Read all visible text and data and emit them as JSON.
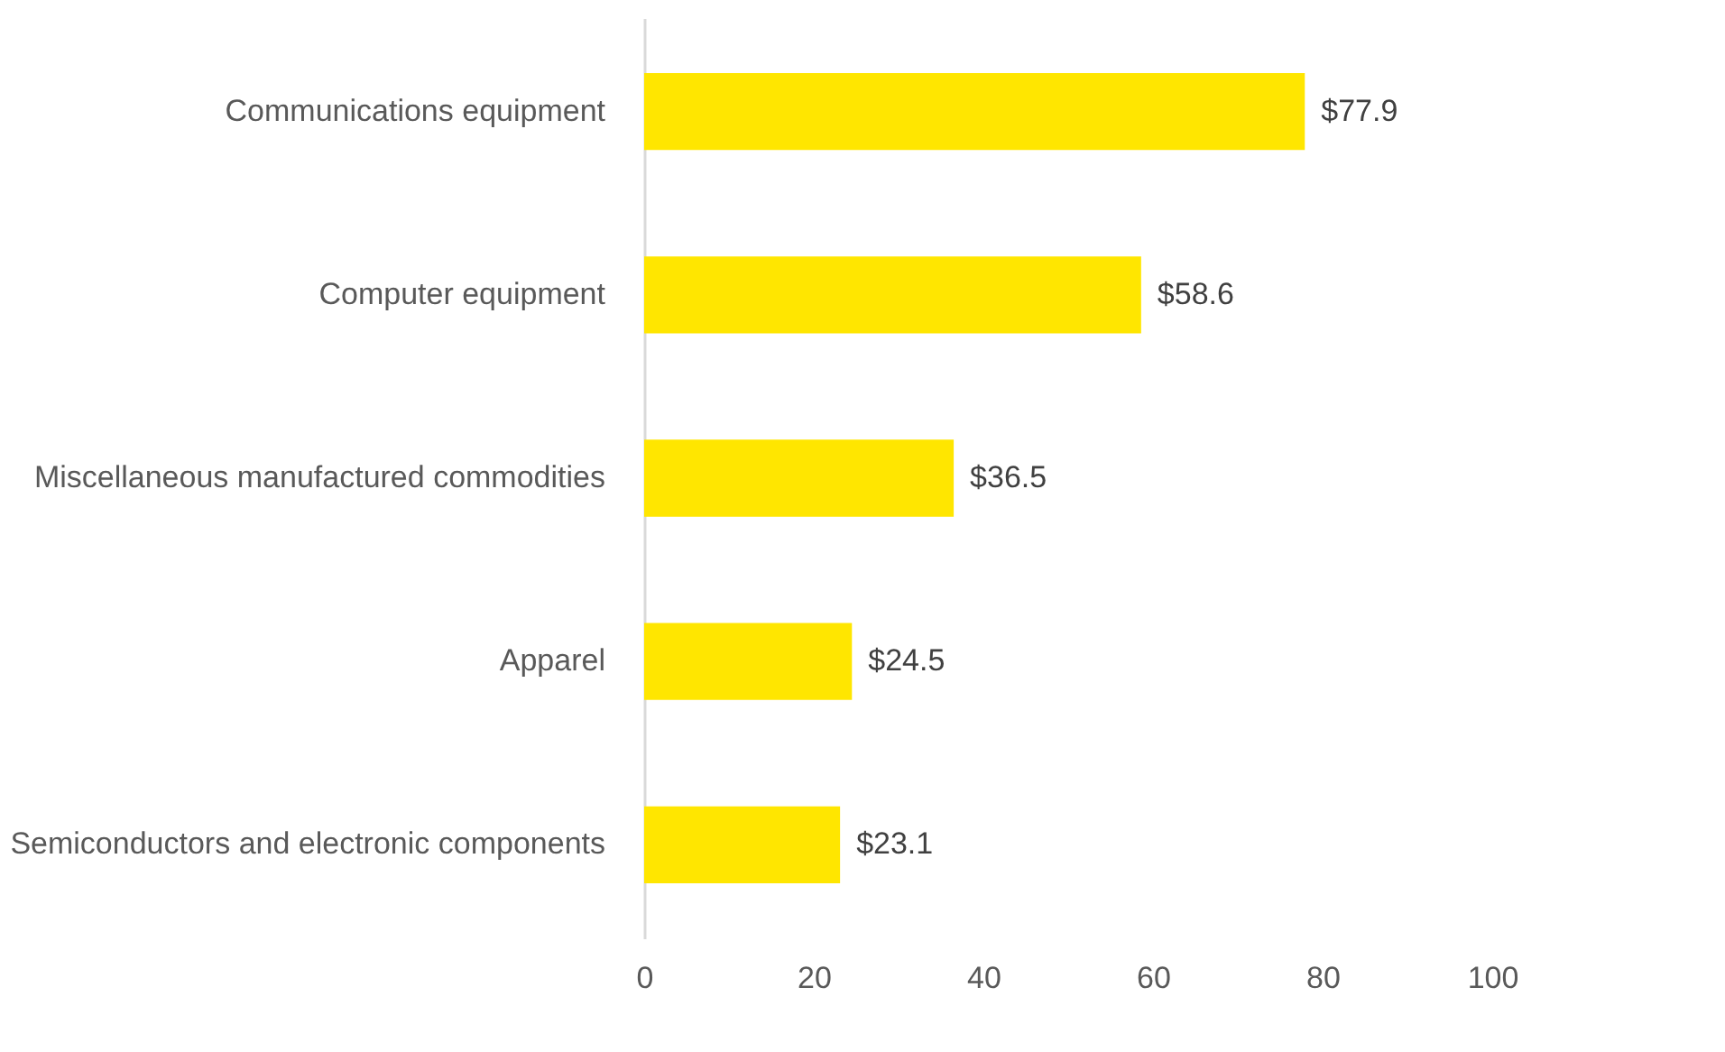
{
  "chart_data": {
    "type": "bar",
    "orientation": "horizontal",
    "categories": [
      "Communications equipment",
      "Computer equipment",
      "Miscellaneous manufactured commodities",
      "Apparel",
      "Semiconductors and electronic components"
    ],
    "values": [
      77.9,
      58.6,
      36.5,
      24.5,
      23.1
    ],
    "value_labels": [
      "$77.9",
      "$58.6",
      "$36.5",
      "$24.5",
      "$23.1"
    ],
    "color": "#ffe600",
    "xlim": [
      0,
      100
    ],
    "xticks": [
      0,
      20,
      40,
      60,
      80,
      100
    ],
    "grid": false
  }
}
